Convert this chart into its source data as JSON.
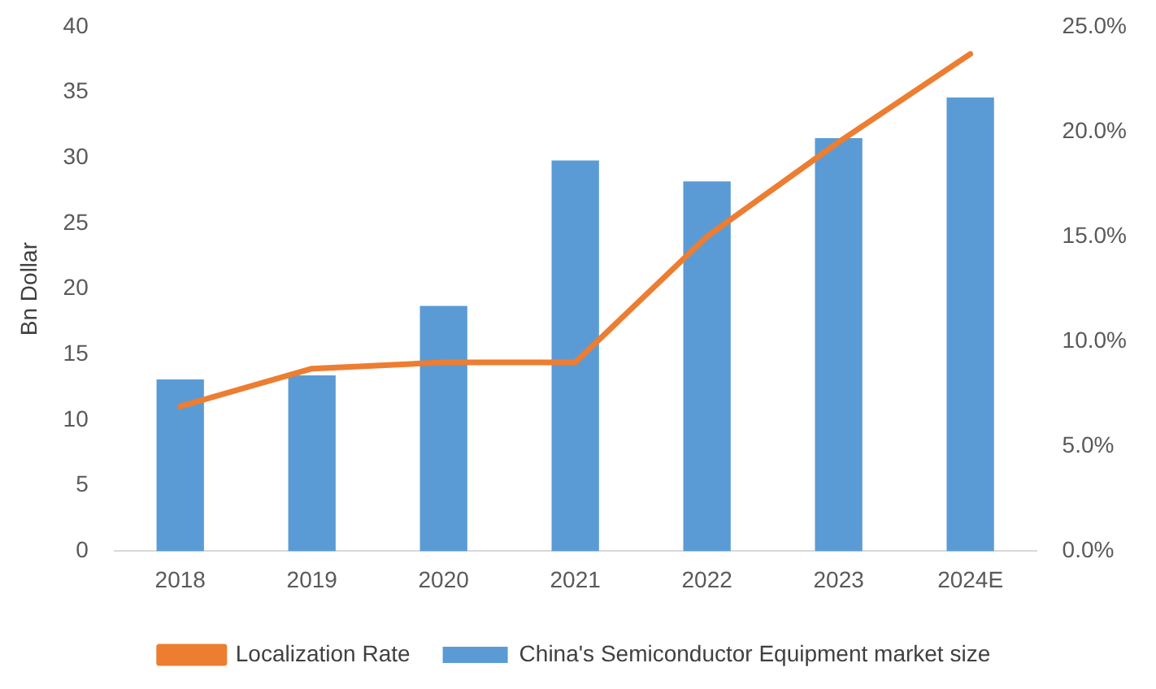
{
  "chart_data": {
    "type": "bar",
    "ylabel": "Bn Dollar",
    "categories": [
      "2018",
      "2019",
      "2020",
      "2021",
      "2022",
      "2023",
      "2024E"
    ],
    "series": [
      {
        "name": "China's Semiconductor Equipment market size",
        "color": "#5b9bd5",
        "values": [
          13.1,
          13.4,
          18.7,
          29.8,
          28.2,
          31.5,
          34.6
        ]
      },
      {
        "name": "Localization Rate",
        "type": "line",
        "axis": "y2",
        "color": "#ed7d31",
        "values": [
          6.9,
          8.7,
          9.0,
          9.0,
          15.0,
          19.5,
          23.7
        ]
      }
    ],
    "ylim": [
      0,
      40
    ],
    "yticks": [
      0,
      5,
      10,
      15,
      20,
      25,
      30,
      35,
      40
    ],
    "y2lim": [
      0,
      25
    ],
    "y2ticks": [
      {
        "value": 0,
        "label": "0.0%"
      },
      {
        "value": 5,
        "label": "5.0%"
      },
      {
        "value": 10,
        "label": "10.0%"
      },
      {
        "value": 15,
        "label": "15.0%"
      },
      {
        "value": 20,
        "label": "20.0%"
      },
      {
        "value": 25,
        "label": "25.0%"
      }
    ],
    "grid": false,
    "legend": "bottom",
    "marker": "none"
  }
}
